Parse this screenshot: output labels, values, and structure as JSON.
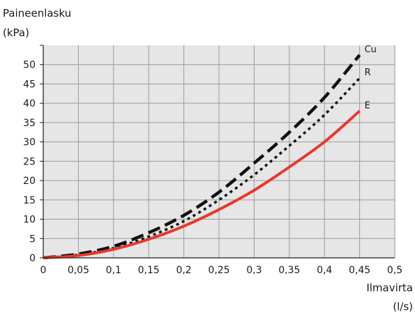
{
  "chart_data": {
    "type": "line",
    "ylabel_line1": "Paineenlasku",
    "ylabel_line2": "(kPa)",
    "xlabel_line1": "Ilmavirta",
    "xlabel_line2": "(l/s)",
    "xlim": [
      0,
      0.5
    ],
    "ylim": [
      0,
      55
    ],
    "grid": true,
    "x_ticks": [
      0,
      0.05,
      0.1,
      0.15,
      0.2,
      0.25,
      0.3,
      0.35,
      0.4,
      0.45,
      0.5
    ],
    "x_tick_labels": [
      "0",
      "0,05",
      "0,1",
      "0,15",
      "0,2",
      "0,25",
      "0,3",
      "0,35",
      "0,4",
      "0,45",
      "0,5"
    ],
    "y_ticks": [
      0,
      5,
      10,
      15,
      20,
      25,
      30,
      35,
      40,
      45,
      50
    ],
    "y_tick_labels": [
      "0",
      "5",
      "10",
      "15",
      "20",
      "25",
      "30",
      "35",
      "40",
      "45",
      "50"
    ],
    "series": [
      {
        "name": "Cu",
        "style": "long-dash",
        "color": "#111111",
        "x": [
          0,
          0.05,
          0.1,
          0.15,
          0.2,
          0.25,
          0.3,
          0.35,
          0.4,
          0.45
        ],
        "y": [
          0,
          1.0,
          3.0,
          6.5,
          11.0,
          17.0,
          24.5,
          32.5,
          41.5,
          52.5
        ]
      },
      {
        "name": "R",
        "style": "dotted",
        "color": "#111111",
        "x": [
          0,
          0.05,
          0.1,
          0.15,
          0.2,
          0.25,
          0.3,
          0.35,
          0.4,
          0.45
        ],
        "y": [
          0,
          0.8,
          2.5,
          5.5,
          9.5,
          15.0,
          21.5,
          29.0,
          37.0,
          46.5
        ]
      },
      {
        "name": "E",
        "style": "solid",
        "color": "#e8382d",
        "x": [
          0,
          0.05,
          0.1,
          0.15,
          0.2,
          0.25,
          0.3,
          0.35,
          0.4,
          0.45
        ],
        "y": [
          0,
          0.6,
          2.2,
          4.8,
          8.2,
          12.5,
          17.5,
          23.5,
          30.0,
          38.0
        ]
      }
    ]
  }
}
